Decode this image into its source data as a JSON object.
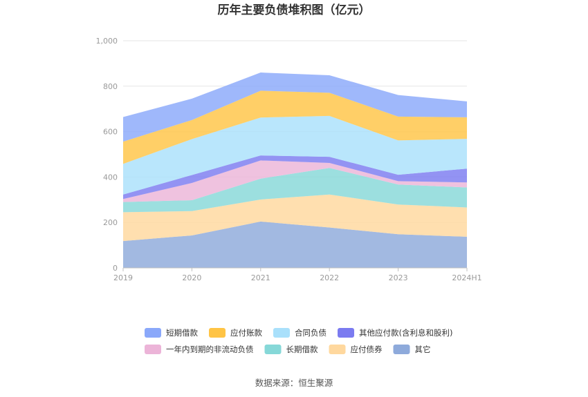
{
  "chart_data": {
    "type": "area",
    "stacked": true,
    "title": "历年主要负债堆积图（亿元）",
    "categories": [
      "2019",
      "2020",
      "2021",
      "2022",
      "2023",
      "2024H1"
    ],
    "ylim": [
      0,
      1000
    ],
    "yticks": [
      "0",
      "200",
      "400",
      "600",
      "800",
      "1,000"
    ],
    "grid": true,
    "legend_position": "bottom",
    "series": [
      {
        "name": "其它",
        "color": "#8eaadb",
        "values": [
          118,
          143,
          204,
          178,
          148,
          137
        ]
      },
      {
        "name": "应付债券",
        "color": "#ffd89e",
        "values": [
          127,
          107,
          97,
          145,
          131,
          129
        ]
      },
      {
        "name": "长期借款",
        "color": "#86d8d8",
        "values": [
          45,
          48,
          92,
          117,
          88,
          88
        ]
      },
      {
        "name": "一年内到期的非流动负债",
        "color": "#ecb4d8",
        "values": [
          13,
          76,
          80,
          22,
          15,
          22
        ]
      },
      {
        "name": "其他应付款(含利息和股利)",
        "color": "#7b7bf0",
        "values": [
          20,
          35,
          22,
          27,
          28,
          61
        ]
      },
      {
        "name": "合同负债",
        "color": "#a9e0fb",
        "values": [
          135,
          158,
          167,
          180,
          151,
          131
        ]
      },
      {
        "name": "应付账款",
        "color": "#ffc445",
        "values": [
          98,
          84,
          118,
          102,
          105,
          95
        ]
      },
      {
        "name": "短期借款",
        "color": "#8aa8fa",
        "values": [
          108,
          94,
          80,
          77,
          95,
          70
        ]
      }
    ],
    "legend_order": [
      "短期借款",
      "应付账款",
      "合同负债",
      "其他应付款(含利息和股利)",
      "一年内到期的非流动负债",
      "长期借款",
      "应付债券",
      "其它"
    ]
  },
  "source_text": "数据来源：恒生聚源"
}
